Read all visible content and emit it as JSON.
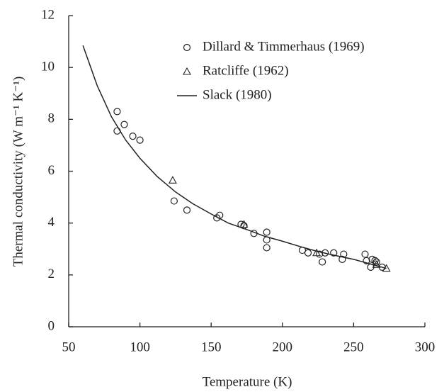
{
  "chart_data": {
    "type": "scatter",
    "x_label": "Temperature  (K)",
    "y_label": "Thermal conductivity  (W m⁻¹ K⁻¹)",
    "xlim": [
      50,
      300
    ],
    "xticks": [
      50,
      100,
      150,
      200,
      250,
      300
    ],
    "ylim": [
      0,
      12
    ],
    "yticks": [
      0,
      2,
      4,
      6,
      8,
      10,
      12
    ],
    "legend": "upper right",
    "series": [
      {
        "name": "Dillard & Timmerhaus (1969)",
        "mode": "markers",
        "marker": "circle",
        "color": "#222",
        "x": [
          84,
          84,
          89,
          95,
          100,
          124,
          133,
          154,
          156,
          171,
          173,
          180,
          189,
          189,
          189,
          214,
          218,
          226,
          228,
          230,
          236,
          242,
          243,
          258,
          259,
          262,
          263,
          265,
          266,
          270
        ],
        "values": [
          8.3,
          7.55,
          7.8,
          7.35,
          7.2,
          4.85,
          4.5,
          4.2,
          4.3,
          3.95,
          3.9,
          3.6,
          3.65,
          3.35,
          3.05,
          2.95,
          2.85,
          2.8,
          2.5,
          2.85,
          2.85,
          2.6,
          2.8,
          2.8,
          2.55,
          2.3,
          2.6,
          2.55,
          2.5,
          2.3
        ]
      },
      {
        "name": "Ratcliffe (1962)",
        "mode": "markers",
        "marker": "triangle",
        "color": "#222",
        "x": [
          123,
          173,
          224,
          266,
          273
        ],
        "values": [
          5.65,
          3.95,
          2.85,
          2.4,
          2.25
        ]
      },
      {
        "name": "Slack (1980)",
        "mode": "line",
        "color": "#222",
        "x": [
          60,
          70,
          80,
          90,
          100,
          112,
          125,
          137,
          150,
          162,
          175,
          187,
          200,
          212,
          225,
          237,
          250,
          262,
          273
        ],
        "values": [
          10.85,
          9.3,
          8.1,
          7.2,
          6.5,
          5.8,
          5.2,
          4.75,
          4.35,
          4.0,
          3.75,
          3.5,
          3.3,
          3.1,
          2.9,
          2.75,
          2.6,
          2.42,
          2.25
        ]
      }
    ]
  }
}
